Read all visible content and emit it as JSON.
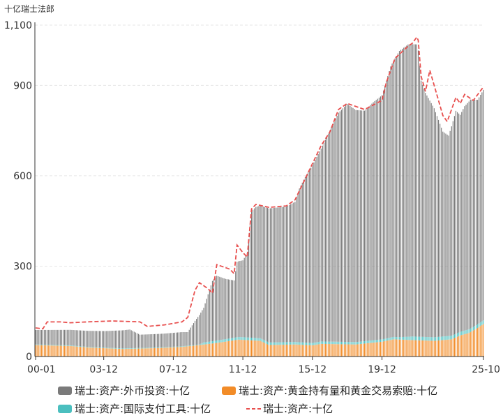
{
  "chart_data": {
    "type": "bar",
    "unit_label": "十亿瑞士法郎",
    "ylim": [
      0,
      1100
    ],
    "y_ticks": [
      0,
      300,
      600,
      900,
      1100
    ],
    "y_tick_labels": [
      "0",
      "300",
      "600",
      "900",
      "1,100"
    ],
    "x_range": [
      "2000-01",
      "2025-10"
    ],
    "x_tick_labels": [
      "00-01",
      "03-12",
      "07-12",
      "11-12",
      "15-12",
      "19-12",
      "25-10"
    ],
    "x_tick_dates": [
      "2000-01",
      "2003-12",
      "2007-12",
      "2011-12",
      "2015-12",
      "2019-12",
      "2025-10"
    ],
    "grid": true,
    "legend_position": "bottom",
    "series_names": [
      "瑞士:资产:外币投资:十亿",
      "瑞士:资产:黄金持有量和黄金交易索赔:十亿",
      "瑞士:资产:国际支付工具:十亿",
      "瑞士:资产:十亿"
    ],
    "colors": {
      "fx": "#7a7a7a",
      "gold": "#f28c28",
      "sdr": "#4bbfbf",
      "total": "#e8504f"
    },
    "series_points": {
      "fx": [
        [
          "2000-01",
          48
        ],
        [
          "2004-01",
          55
        ],
        [
          "2005-06",
          62
        ],
        [
          "2006-01",
          44
        ],
        [
          "2007-06",
          45
        ],
        [
          "2008-06",
          47
        ],
        [
          "2008-10",
          45
        ],
        [
          "2009-03",
          80
        ],
        [
          "2009-09",
          115
        ],
        [
          "2010-03",
          200
        ],
        [
          "2010-06",
          215
        ],
        [
          "2010-12",
          200
        ],
        [
          "2011-06",
          190
        ],
        [
          "2011-08",
          250
        ],
        [
          "2011-12",
          255
        ],
        [
          "2012-03",
          280
        ],
        [
          "2012-06",
          420
        ],
        [
          "2012-09",
          435
        ],
        [
          "2012-12",
          440
        ],
        [
          "2013-06",
          445
        ],
        [
          "2014-06",
          450
        ],
        [
          "2014-12",
          465
        ],
        [
          "2015-03",
          510
        ],
        [
          "2015-06",
          540
        ],
        [
          "2015-12",
          590
        ],
        [
          "2016-06",
          640
        ],
        [
          "2016-12",
          700
        ],
        [
          "2017-06",
          760
        ],
        [
          "2017-12",
          790
        ],
        [
          "2018-06",
          770
        ],
        [
          "2018-12",
          765
        ],
        [
          "2019-06",
          790
        ],
        [
          "2019-12",
          810
        ],
        [
          "2020-06",
          900
        ],
        [
          "2020-12",
          950
        ],
        [
          "2021-06",
          970
        ],
        [
          "2021-12",
          970
        ],
        [
          "2022-01",
          950
        ],
        [
          "2022-03",
          850
        ],
        [
          "2022-06",
          810
        ],
        [
          "2022-12",
          760
        ],
        [
          "2023-06",
          680
        ],
        [
          "2023-10",
          665
        ],
        [
          "2024-03",
          740
        ],
        [
          "2024-06",
          720
        ],
        [
          "2024-09",
          745
        ],
        [
          "2025-01",
          760
        ],
        [
          "2025-06",
          745
        ],
        [
          "2025-10",
          765
        ]
      ],
      "gold": [
        [
          "2000-01",
          38
        ],
        [
          "2002-01",
          35
        ],
        [
          "2003-01",
          30
        ],
        [
          "2005-01",
          25
        ],
        [
          "2007-01",
          28
        ],
        [
          "2008-06",
          32
        ],
        [
          "2009-06",
          38
        ],
        [
          "2010-06",
          45
        ],
        [
          "2011-09",
          56
        ],
        [
          "2012-12",
          52
        ],
        [
          "2013-06",
          38
        ],
        [
          "2014-12",
          40
        ],
        [
          "2015-12",
          37
        ],
        [
          "2016-06",
          42
        ],
        [
          "2018-06",
          40
        ],
        [
          "2019-12",
          49
        ],
        [
          "2020-08",
          57
        ],
        [
          "2021-12",
          54
        ],
        [
          "2022-12",
          52
        ],
        [
          "2023-12",
          57
        ],
        [
          "2024-06",
          70
        ],
        [
          "2024-12",
          78
        ],
        [
          "2025-06",
          95
        ],
        [
          "2025-10",
          108
        ]
      ],
      "sdr": [
        [
          "2000-01",
          2
        ],
        [
          "2009-06",
          2
        ],
        [
          "2009-09",
          7
        ],
        [
          "2010-06",
          8
        ],
        [
          "2011-12",
          9
        ],
        [
          "2015-12",
          8
        ],
        [
          "2020-12",
          8
        ],
        [
          "2021-09",
          12
        ],
        [
          "2025-10",
          12
        ]
      ],
      "total": [
        [
          "2000-01",
          95
        ],
        [
          "2000-06",
          92
        ],
        [
          "2000-09",
          115
        ],
        [
          "2001-06",
          115
        ],
        [
          "2002-01",
          112
        ],
        [
          "2003-01",
          115
        ],
        [
          "2004-06",
          118
        ],
        [
          "2006-01",
          115
        ],
        [
          "2006-06",
          100
        ],
        [
          "2007-06",
          105
        ],
        [
          "2008-06",
          115
        ],
        [
          "2008-10",
          130
        ],
        [
          "2009-03",
          220
        ],
        [
          "2009-06",
          245
        ],
        [
          "2009-12",
          225
        ],
        [
          "2010-03",
          210
        ],
        [
          "2010-06",
          305
        ],
        [
          "2011-03",
          290
        ],
        [
          "2011-06",
          275
        ],
        [
          "2011-08",
          370
        ],
        [
          "2011-12",
          345
        ],
        [
          "2012-03",
          330
        ],
        [
          "2012-06",
          490
        ],
        [
          "2012-09",
          505
        ],
        [
          "2013-06",
          495
        ],
        [
          "2014-06",
          500
        ],
        [
          "2014-12",
          520
        ],
        [
          "2015-06",
          580
        ],
        [
          "2015-12",
          640
        ],
        [
          "2016-06",
          700
        ],
        [
          "2016-12",
          745
        ],
        [
          "2017-06",
          820
        ],
        [
          "2017-12",
          840
        ],
        [
          "2018-06",
          830
        ],
        [
          "2018-12",
          820
        ],
        [
          "2019-06",
          835
        ],
        [
          "2019-12",
          850
        ],
        [
          "2020-03",
          910
        ],
        [
          "2020-09",
          990
        ],
        [
          "2021-06",
          1030
        ],
        [
          "2021-09",
          1040
        ],
        [
          "2021-12",
          1060
        ],
        [
          "2022-01",
          1050
        ],
        [
          "2022-03",
          930
        ],
        [
          "2022-06",
          880
        ],
        [
          "2022-09",
          950
        ],
        [
          "2022-12",
          900
        ],
        [
          "2023-06",
          800
        ],
        [
          "2023-09",
          780
        ],
        [
          "2024-03",
          860
        ],
        [
          "2024-06",
          840
        ],
        [
          "2024-09",
          870
        ],
        [
          "2025-03",
          850
        ],
        [
          "2025-10",
          895
        ]
      ]
    }
  }
}
